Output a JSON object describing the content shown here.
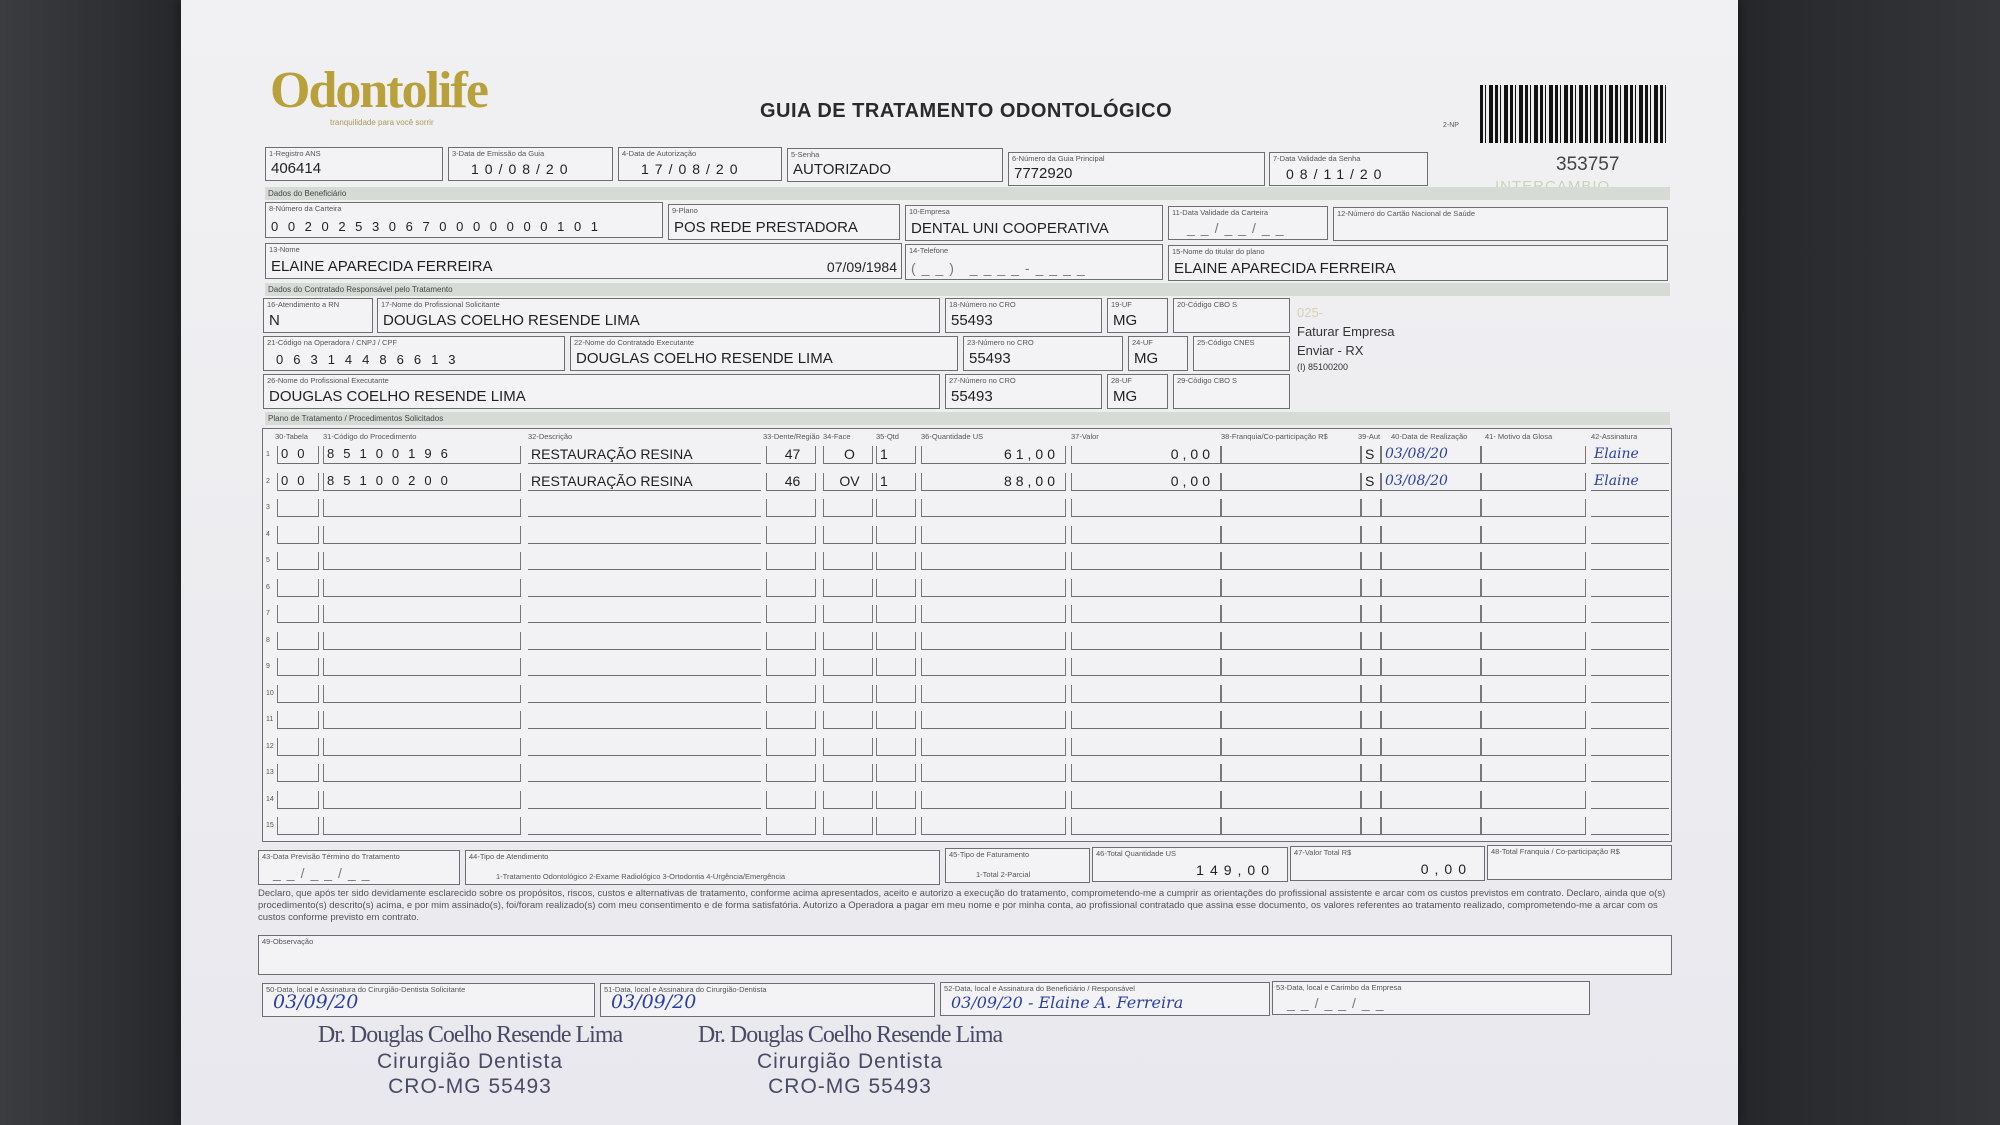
{
  "header": {
    "logo_text": "Odontolife",
    "logo_tagline": "tranquilidade para você sorrir",
    "title": "GUIA DE TRATAMENTO ODONTOLÓGICO",
    "form_code": "2-NP",
    "guide_number": "353757",
    "watermark": "INTERCAMBIO"
  },
  "fields": {
    "registro_ans": {
      "label": "1-Registro ANS",
      "value": "406414"
    },
    "data_emissao": {
      "label": "3-Data de Emissão da Guia",
      "value": "10/08/20"
    },
    "data_autorizacao": {
      "label": "4-Data de Autorização",
      "value": "17/08/20"
    },
    "senha": {
      "label": "5-Senha",
      "value": "AUTORIZADO"
    },
    "guia_principal": {
      "label": "6-Número da Guia Principal",
      "value": "7772920"
    },
    "validade_senha": {
      "label": "7-Data Validade da Senha",
      "value": "08/11/20"
    },
    "carteira": {
      "label": "8-Número da Carteira",
      "value": "00202530670000000101"
    },
    "plano": {
      "label": "9-Plano",
      "value": "POS REDE PRESTADORA"
    },
    "empresa": {
      "label": "10-Empresa",
      "value": "DENTAL UNI  COOPERATIVA"
    },
    "validade_carteira": {
      "label": "11-Data Validade da Carteira",
      "value": "__/__/__"
    },
    "cns": {
      "label": "12-Número do Cartão Nacional de Saúde",
      "value": ""
    },
    "nome": {
      "label": "13-Nome",
      "value": "ELAINE APARECIDA FERREIRA",
      "birth": "07/09/1984"
    },
    "telefone": {
      "label": "14-Telefone",
      "value": "(__) ____-____"
    },
    "titular": {
      "label": "15-Nome do titular do plano",
      "value": "ELAINE APARECIDA FERREIRA"
    },
    "atendimento_rn": {
      "label": "16-Atendimento a RN",
      "value": "N"
    },
    "prof_solicitante": {
      "label": "17-Nome do Profissional Solicitante",
      "value": "DOUGLAS COELHO RESENDE LIMA"
    },
    "cro_18": {
      "label": "18-Número no CRO",
      "value": "55493"
    },
    "uf_19": {
      "label": "19-UF",
      "value": "MG"
    },
    "cbo_20": {
      "label": "20-Código CBO S",
      "value": ""
    },
    "cod_operadora": {
      "label": "21-Código na Operadora / CNPJ / CPF",
      "value": "06314486613"
    },
    "contratado_exec": {
      "label": "22-Nome do Contratado Executante",
      "value": "DOUGLAS COELHO RESENDE LIMA"
    },
    "cro_23": {
      "label": "23-Número no CRO",
      "value": "55493"
    },
    "uf_24": {
      "label": "24-UF",
      "value": "MG"
    },
    "cnes_25": {
      "label": "25-Código CNES",
      "value": ""
    },
    "prof_exec": {
      "label": "26-Nome do Profissional Executante",
      "value": "DOUGLAS COELHO RESENDE LIMA"
    },
    "cro_27": {
      "label": "27-Número no CRO",
      "value": "55493"
    },
    "uf_28": {
      "label": "28-UF",
      "value": "MG"
    },
    "cbo_29": {
      "label": "29-Código CBO S",
      "value": ""
    }
  },
  "sections": {
    "beneficiario": "Dados do Beneficiário",
    "contratado": "Dados do Contratado Responsável pelo Tratamento",
    "plano": "Plano de Tratamento / Procedimentos Solicitados"
  },
  "side_notes": {
    "code": "025-",
    "line1": "Faturar Empresa",
    "line2": "Enviar - RX",
    "line3": "(I) 85100200"
  },
  "procedures": {
    "headers": [
      "30-Tabela",
      "31-Código do Procedimento",
      "32-Descrição",
      "33-Dente/Região",
      "34-Face",
      "35-Qtd",
      "36-Quantidade US",
      "37-Valor",
      "38-Franquia/Co-participação R$",
      "39-Aut",
      "40-Data de Realização",
      "41- Motivo da Glosa",
      "42-Assinatura"
    ],
    "rows": [
      {
        "n": "1",
        "tabela": "00",
        "codigo": "85100196",
        "descricao": "RESTAURAÇÃO RESINA",
        "dente": "47",
        "face": "O",
        "qtd": "1",
        "us": "61,00",
        "valor": "0,00",
        "franquia": "",
        "aut": "S",
        "data": "03/08/20",
        "motivo": "",
        "assinatura": "Elaine"
      },
      {
        "n": "2",
        "tabela": "00",
        "codigo": "85100200",
        "descricao": "RESTAURAÇÃO RESINA",
        "dente": "46",
        "face": "OV",
        "qtd": "1",
        "us": "88,00",
        "valor": "0,00",
        "franquia": "",
        "aut": "S",
        "data": "03/08/20",
        "motivo": "",
        "assinatura": "Elaine"
      },
      {
        "n": "3"
      },
      {
        "n": "4"
      },
      {
        "n": "5"
      },
      {
        "n": "6"
      },
      {
        "n": "7"
      },
      {
        "n": "8"
      },
      {
        "n": "9"
      },
      {
        "n": "10"
      },
      {
        "n": "11"
      },
      {
        "n": "12"
      },
      {
        "n": "13"
      },
      {
        "n": "14"
      },
      {
        "n": "15"
      }
    ]
  },
  "totals": {
    "previsao": {
      "label": "43-Data Previsão Término do Tratamento",
      "value": "__/__/__"
    },
    "tipo_atendimento": {
      "label": "44-Tipo de Atendimento",
      "value": "1-Tratamento Odontológico  2-Exame Radiológico  3-Ortodontia  4-Urgência/Emergência"
    },
    "tipo_faturamento": {
      "label": "45-Tipo de Faturamento",
      "value": "1-Total  2-Parcial"
    },
    "total_us": {
      "label": "46-Total Quantidade US",
      "value": "149,00"
    },
    "valor_total": {
      "label": "47-Valor Total R$",
      "value": "0,00"
    },
    "total_franquia": {
      "label": "48-Total Franquia / Co-participação R$",
      "value": ""
    }
  },
  "declaration": "Declaro, que após ter sido devidamente esclarecido sobre os propósitos, riscos, custos e alternativas de tratamento, conforme acima apresentados, aceito e autorizo a execução do tratamento, comprometendo-me a cumprir as orientações do profissional assistente e arcar com os custos previstos em contrato. Declaro, ainda que o(s) procedimento(s) descrito(s) acima, e por mim assinado(s), foi/foram realizado(s) com meu consentimento e de forma satisfatória. Autorizo a Operadora a pagar em meu nome e por minha conta, ao profissional contratado que assina esse documento, os valores referentes ao tratamento realizado, comprometendo-me a arcar com os custos conforme previsto em contrato.",
  "observacao": {
    "label": "49-Observação",
    "value": ""
  },
  "signatures": {
    "s50": {
      "label": "50-Data, local e Assinatura do Cirurgião-Dentista Solicitante",
      "value": "03/09/20"
    },
    "s51": {
      "label": "51-Data, local e Assinatura do Cirurgião-Dentista",
      "value": "03/09/20"
    },
    "s52": {
      "label": "52-Data, local e Assinatura do Beneficiário / Responsável",
      "value": "03/09/20 - Elaine A. Ferreira"
    },
    "s53": {
      "label": "53-Data, local e Carimbo da Empresa",
      "value": "__/__/__"
    }
  },
  "stamps": [
    {
      "name": "Dr. Douglas Coelho Resende Lima",
      "role": "Cirurgião Dentista",
      "reg": "CRO-MG 55493"
    },
    {
      "name": "Dr. Douglas Coelho Resende Lima",
      "role": "Cirurgião Dentista",
      "reg": "CRO-MG 55493"
    }
  ],
  "colors": {
    "logo": "#b8a13a",
    "ink": "#2b3fa8",
    "band": "#d6dbd6"
  }
}
